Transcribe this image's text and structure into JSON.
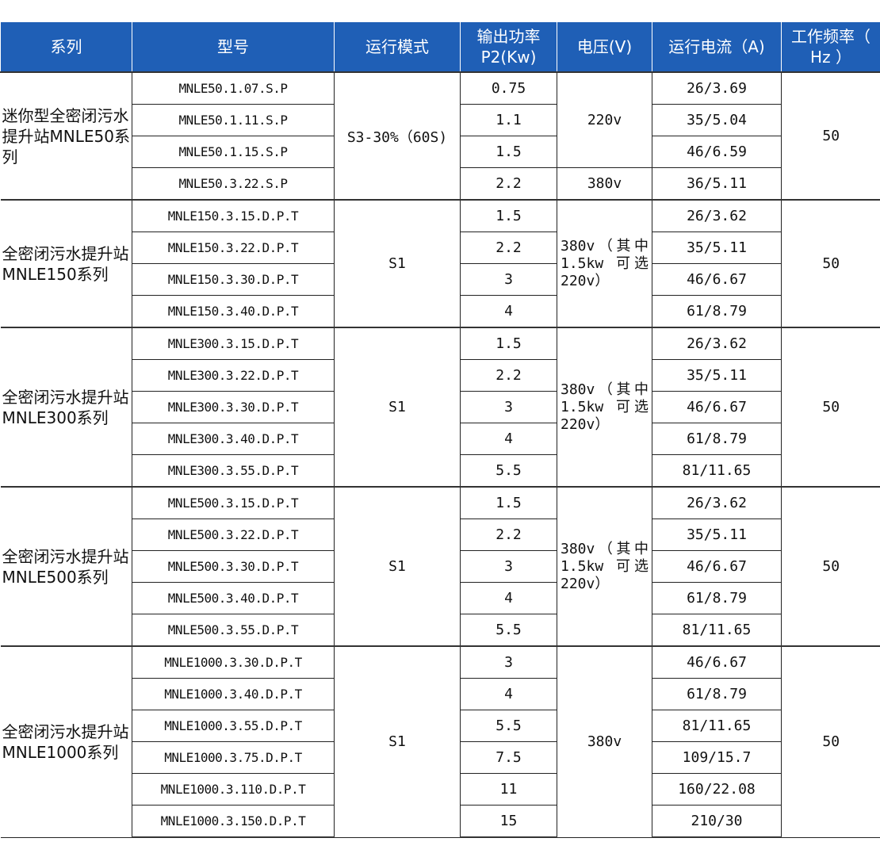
{
  "header": [
    "系列",
    "型号",
    "运行模式",
    "输出功率P2(Kw)",
    "电压(V)",
    "运行电流（A)",
    "工作频率（ Hz ）"
  ],
  "colors": {
    "header_bg": "#1f5fb6",
    "header_text": "#ffffff"
  },
  "groups": [
    {
      "series": "迷你型全密闭污水提升站MNLE50系列",
      "mode": "S3-30%（60S)",
      "frequency": "50",
      "voltages": [
        {
          "text": "220v",
          "rows": 3
        },
        {
          "text": "380v",
          "rows": 1
        }
      ],
      "rows": [
        {
          "model": "MNLE50.1.07.S.P",
          "power": "0.75",
          "current": "26/3.69"
        },
        {
          "model": "MNLE50.1.11.S.P",
          "power": "1.1",
          "current": "35/5.04"
        },
        {
          "model": "MNLE50.1.15.S.P",
          "power": "1.5",
          "current": "46/6.59"
        },
        {
          "model": "MNLE50.3.22.S.P",
          "power": "2.2",
          "current": "36/5.11"
        }
      ]
    },
    {
      "series": "全密闭污水提升站MNLE150系列",
      "mode": "S1",
      "frequency": "50",
      "voltages": [
        {
          "text": "380v（其中 1.5kw 可选 220v）",
          "rows": 4
        }
      ],
      "rows": [
        {
          "model": "MNLE150.3.15.D.P.T",
          "power": "1.5",
          "current": "26/3.62"
        },
        {
          "model": "MNLE150.3.22.D.P.T",
          "power": "2.2",
          "current": "35/5.11"
        },
        {
          "model": "MNLE150.3.30.D.P.T",
          "power": "3",
          "current": "46/6.67"
        },
        {
          "model": "MNLE150.3.40.D.P.T",
          "power": "4",
          "current": "61/8.79"
        }
      ]
    },
    {
      "series": "全密闭污水提升站MNLE300系列",
      "mode": "S1",
      "frequency": "50",
      "voltages": [
        {
          "text": "380v（其中 1.5kw 可选 220v）",
          "rows": 5
        }
      ],
      "rows": [
        {
          "model": "MNLE300.3.15.D.P.T",
          "power": "1.5",
          "current": "26/3.62"
        },
        {
          "model": "MNLE300.3.22.D.P.T",
          "power": "2.2",
          "current": "35/5.11"
        },
        {
          "model": "MNLE300.3.30.D.P.T",
          "power": "3",
          "current": "46/6.67"
        },
        {
          "model": "MNLE300.3.40.D.P.T",
          "power": "4",
          "current": "61/8.79"
        },
        {
          "model": "MNLE300.3.55.D.P.T",
          "power": "5.5",
          "current": "81/11.65"
        }
      ]
    },
    {
      "series": "全密闭污水提升站MNLE500系列",
      "mode": "S1",
      "frequency": "50",
      "voltages": [
        {
          "text": "380v（其中 1.5kw 可选 220v）",
          "rows": 5
        }
      ],
      "rows": [
        {
          "model": "MNLE500.3.15.D.P.T",
          "power": "1.5",
          "current": "26/3.62"
        },
        {
          "model": "MNLE500.3.22.D.P.T",
          "power": "2.2",
          "current": "35/5.11"
        },
        {
          "model": "MNLE500.3.30.D.P.T",
          "power": "3",
          "current": "46/6.67"
        },
        {
          "model": "MNLE500.3.40.D.P.T",
          "power": "4",
          "current": "61/8.79"
        },
        {
          "model": "MNLE500.3.55.D.P.T",
          "power": "5.5",
          "current": "81/11.65"
        }
      ]
    },
    {
      "series": "全密闭污水提升站MNLE1000系列",
      "mode": "S1",
      "frequency": "50",
      "voltages": [
        {
          "text": "380v",
          "rows": 6
        }
      ],
      "rows": [
        {
          "model": "MNLE1000.3.30.D.P.T",
          "power": "3",
          "current": "46/6.67"
        },
        {
          "model": "MNLE1000.3.40.D.P.T",
          "power": "4",
          "current": "61/8.79"
        },
        {
          "model": "MNLE1000.3.55.D.P.T",
          "power": "5.5",
          "current": "81/11.65"
        },
        {
          "model": "MNLE1000.3.75.D.P.T",
          "power": "7.5",
          "current": "109/15.7"
        },
        {
          "model": "MNLE1000.3.110.D.P.T",
          "power": "11",
          "current": "160/22.08"
        },
        {
          "model": "MNLE1000.3.150.D.P.T",
          "power": "15",
          "current": "210/30"
        }
      ]
    }
  ]
}
